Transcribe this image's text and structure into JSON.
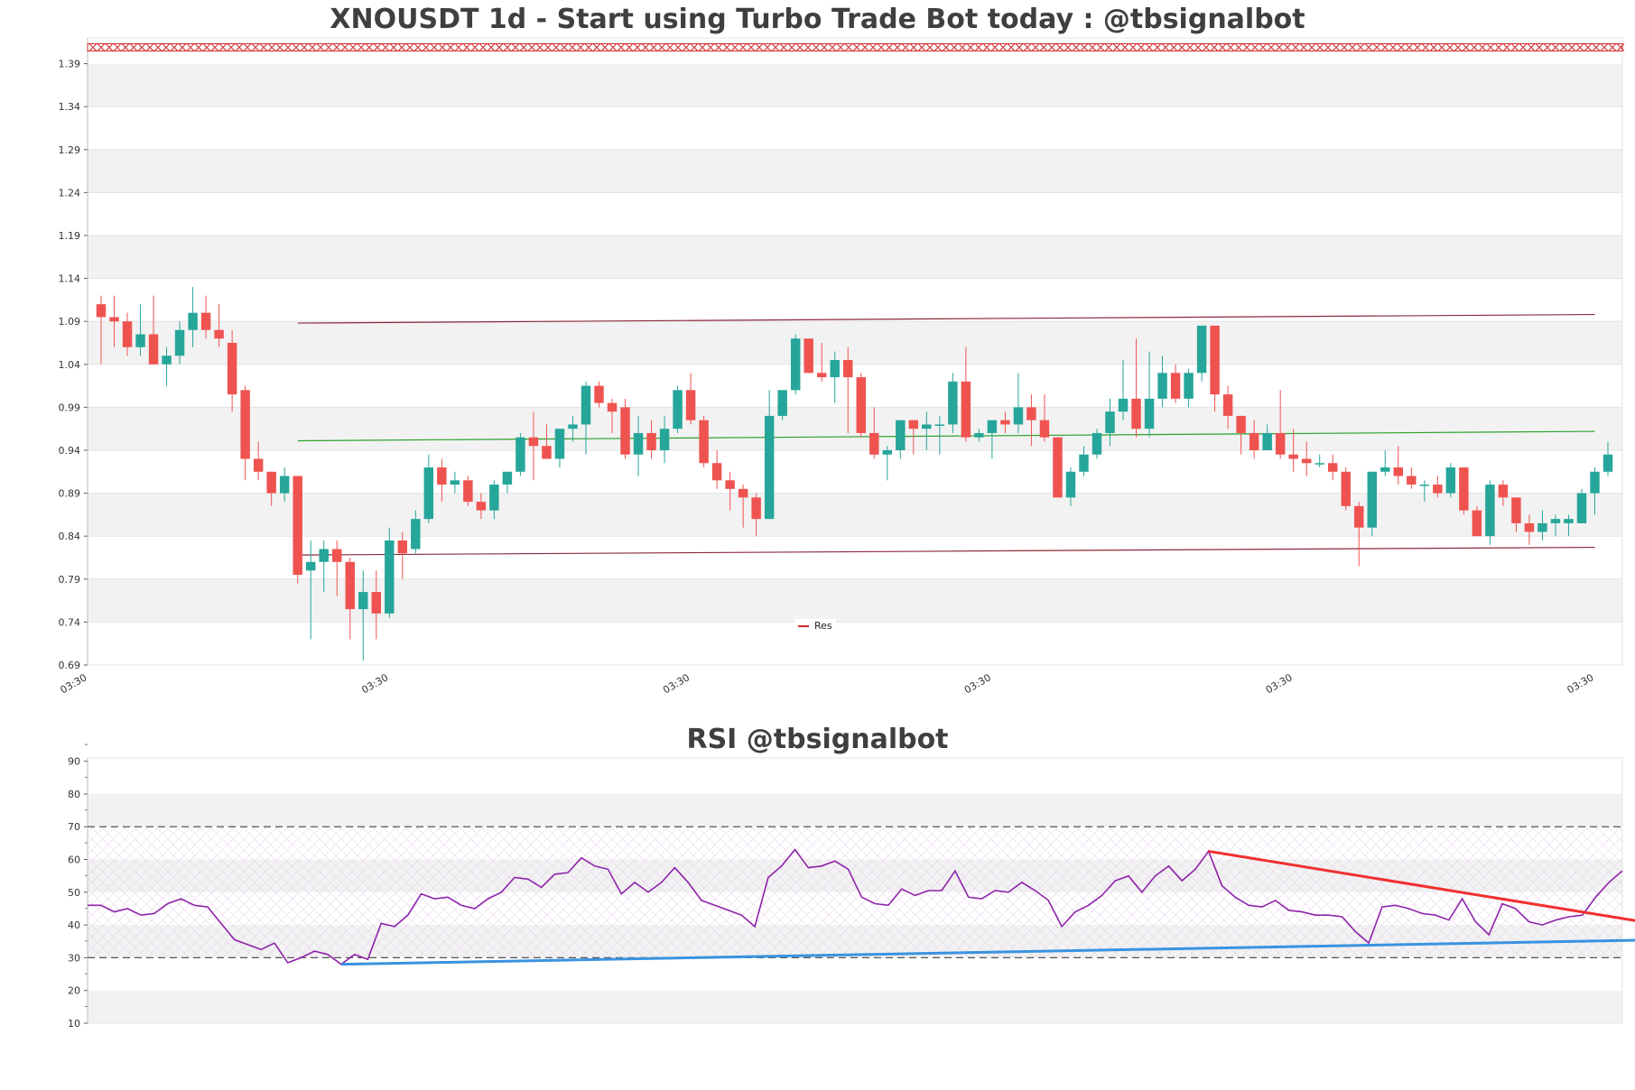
{
  "main_title": "XNOUSDT 1d - Start using Turbo Trade Bot today : @tbsignalbot",
  "rsi_title": "RSI @tbsignalbot",
  "legend_label": "Res",
  "colors": {
    "up": "#26a69a",
    "down": "#ef5350",
    "resistance": "#d62728",
    "channel": "#8b2a3a",
    "mid": "#2ca02c",
    "rsi": "#8e24aa",
    "rsi_down_trend": "#f03030",
    "rsi_up_trend": "#3a93e0",
    "band": "#f2f2f2"
  },
  "chart_data": [
    {
      "type": "candlestick",
      "title": "XNOUSDT 1d - Start using Turbo Trade Bot today : @tbsignalbot",
      "ylim": [
        0.69,
        1.42
      ],
      "y_ticks": [
        "0.69",
        "0.74",
        "0.79",
        "0.84",
        "0.89",
        "0.94",
        "0.99",
        "1.04",
        "1.09",
        "1.14",
        "1.19",
        "1.24",
        "1.29",
        "1.34",
        "1.39"
      ],
      "x_ticks": [
        "03:30",
        "03:30",
        "03:30",
        "03:30",
        "03:30",
        "03:30"
      ],
      "legend": [
        "Res"
      ],
      "resistance_level": 1.409,
      "candles": [
        [
          1.11,
          1.12,
          1.04,
          1.095
        ],
        [
          1.095,
          1.12,
          1.06,
          1.09
        ],
        [
          1.09,
          1.1,
          1.05,
          1.06
        ],
        [
          1.06,
          1.11,
          1.05,
          1.075
        ],
        [
          1.075,
          1.12,
          1.04,
          1.04
        ],
        [
          1.04,
          1.06,
          1.015,
          1.05
        ],
        [
          1.05,
          1.09,
          1.04,
          1.08
        ],
        [
          1.08,
          1.13,
          1.06,
          1.1
        ],
        [
          1.1,
          1.12,
          1.07,
          1.08
        ],
        [
          1.08,
          1.11,
          1.06,
          1.07
        ],
        [
          1.065,
          1.08,
          0.985,
          1.005
        ],
        [
          1.01,
          1.015,
          0.905,
          0.93
        ],
        [
          0.93,
          0.95,
          0.905,
          0.915
        ],
        [
          0.915,
          0.915,
          0.875,
          0.89
        ],
        [
          0.89,
          0.92,
          0.88,
          0.91
        ],
        [
          0.91,
          0.91,
          0.785,
          0.795
        ],
        [
          0.8,
          0.835,
          0.72,
          0.81
        ],
        [
          0.81,
          0.835,
          0.775,
          0.825
        ],
        [
          0.825,
          0.835,
          0.77,
          0.81
        ],
        [
          0.81,
          0.815,
          0.72,
          0.755
        ],
        [
          0.755,
          0.8,
          0.695,
          0.775
        ],
        [
          0.775,
          0.8,
          0.72,
          0.75
        ],
        [
          0.75,
          0.85,
          0.745,
          0.835
        ],
        [
          0.835,
          0.845,
          0.79,
          0.82
        ],
        [
          0.825,
          0.87,
          0.82,
          0.86
        ],
        [
          0.86,
          0.935,
          0.855,
          0.92
        ],
        [
          0.92,
          0.93,
          0.88,
          0.9
        ],
        [
          0.9,
          0.915,
          0.89,
          0.905
        ],
        [
          0.905,
          0.91,
          0.875,
          0.88
        ],
        [
          0.88,
          0.89,
          0.86,
          0.87
        ],
        [
          0.87,
          0.905,
          0.86,
          0.9
        ],
        [
          0.9,
          0.915,
          0.89,
          0.915
        ],
        [
          0.915,
          0.96,
          0.91,
          0.955
        ],
        [
          0.955,
          0.985,
          0.905,
          0.945
        ],
        [
          0.945,
          0.97,
          0.93,
          0.93
        ],
        [
          0.93,
          0.965,
          0.92,
          0.965
        ],
        [
          0.965,
          0.98,
          0.95,
          0.97
        ],
        [
          0.97,
          1.02,
          0.935,
          1.015
        ],
        [
          1.015,
          1.02,
          0.99,
          0.995
        ],
        [
          0.995,
          1.0,
          0.96,
          0.985
        ],
        [
          0.99,
          1.0,
          0.93,
          0.935
        ],
        [
          0.935,
          0.98,
          0.91,
          0.96
        ],
        [
          0.96,
          0.975,
          0.93,
          0.94
        ],
        [
          0.94,
          0.98,
          0.925,
          0.965
        ],
        [
          0.965,
          1.015,
          0.96,
          1.01
        ],
        [
          1.01,
          1.03,
          0.97,
          0.975
        ],
        [
          0.975,
          0.98,
          0.92,
          0.925
        ],
        [
          0.925,
          0.94,
          0.895,
          0.905
        ],
        [
          0.905,
          0.915,
          0.87,
          0.895
        ],
        [
          0.895,
          0.9,
          0.85,
          0.885
        ],
        [
          0.885,
          0.89,
          0.84,
          0.86
        ],
        [
          0.86,
          1.01,
          0.86,
          0.98
        ],
        [
          0.98,
          1.01,
          0.975,
          1.01
        ],
        [
          1.01,
          1.075,
          1.005,
          1.07
        ],
        [
          1.07,
          1.07,
          1.03,
          1.03
        ],
        [
          1.03,
          1.065,
          1.02,
          1.025
        ],
        [
          1.025,
          1.055,
          0.995,
          1.045
        ],
        [
          1.045,
          1.06,
          0.96,
          1.025
        ],
        [
          1.025,
          1.03,
          0.955,
          0.96
        ],
        [
          0.96,
          0.99,
          0.93,
          0.935
        ],
        [
          0.935,
          0.945,
          0.905,
          0.94
        ],
        [
          0.94,
          0.975,
          0.93,
          0.975
        ],
        [
          0.975,
          0.975,
          0.935,
          0.965
        ],
        [
          0.965,
          0.985,
          0.94,
          0.97
        ],
        [
          0.97,
          0.98,
          0.935,
          0.97
        ],
        [
          0.97,
          1.03,
          0.96,
          1.02
        ],
        [
          1.02,
          1.06,
          0.95,
          0.955
        ],
        [
          0.955,
          0.965,
          0.95,
          0.96
        ],
        [
          0.96,
          0.975,
          0.93,
          0.975
        ],
        [
          0.975,
          0.985,
          0.96,
          0.97
        ],
        [
          0.97,
          1.03,
          0.96,
          0.99
        ],
        [
          0.99,
          1.005,
          0.945,
          0.975
        ],
        [
          0.975,
          1.005,
          0.95,
          0.955
        ],
        [
          0.955,
          0.955,
          0.885,
          0.885
        ],
        [
          0.885,
          0.92,
          0.875,
          0.915
        ],
        [
          0.915,
          0.945,
          0.91,
          0.935
        ],
        [
          0.935,
          0.965,
          0.93,
          0.96
        ],
        [
          0.96,
          1.0,
          0.945,
          0.985
        ],
        [
          0.985,
          1.045,
          0.975,
          1.0
        ],
        [
          1.0,
          1.07,
          0.955,
          0.965
        ],
        [
          0.965,
          1.055,
          0.955,
          1.0
        ],
        [
          1.0,
          1.05,
          0.99,
          1.03
        ],
        [
          1.03,
          1.04,
          0.995,
          1.0
        ],
        [
          1.0,
          1.035,
          0.99,
          1.03
        ],
        [
          1.03,
          1.085,
          1.02,
          1.085
        ],
        [
          1.085,
          1.085,
          0.985,
          1.005
        ],
        [
          1.005,
          1.015,
          0.965,
          0.98
        ],
        [
          0.98,
          0.98,
          0.935,
          0.96
        ],
        [
          0.96,
          0.975,
          0.93,
          0.94
        ],
        [
          0.94,
          0.97,
          0.94,
          0.96
        ],
        [
          0.96,
          1.01,
          0.93,
          0.935
        ],
        [
          0.935,
          0.965,
          0.915,
          0.93
        ],
        [
          0.93,
          0.95,
          0.91,
          0.925
        ],
        [
          0.925,
          0.935,
          0.92,
          0.925
        ],
        [
          0.925,
          0.935,
          0.905,
          0.915
        ],
        [
          0.915,
          0.92,
          0.87,
          0.875
        ],
        [
          0.875,
          0.88,
          0.805,
          0.85
        ],
        [
          0.85,
          0.915,
          0.84,
          0.915
        ],
        [
          0.915,
          0.94,
          0.91,
          0.92
        ],
        [
          0.92,
          0.945,
          0.9,
          0.91
        ],
        [
          0.91,
          0.92,
          0.895,
          0.9
        ],
        [
          0.9,
          0.905,
          0.88,
          0.9
        ],
        [
          0.9,
          0.91,
          0.885,
          0.89
        ],
        [
          0.89,
          0.925,
          0.885,
          0.92
        ],
        [
          0.92,
          0.92,
          0.865,
          0.87
        ],
        [
          0.87,
          0.875,
          0.84,
          0.84
        ],
        [
          0.84,
          0.905,
          0.83,
          0.9
        ],
        [
          0.9,
          0.905,
          0.875,
          0.885
        ],
        [
          0.885,
          0.885,
          0.845,
          0.855
        ],
        [
          0.855,
          0.865,
          0.83,
          0.845
        ],
        [
          0.845,
          0.87,
          0.835,
          0.855
        ],
        [
          0.855,
          0.865,
          0.84,
          0.86
        ],
        [
          0.855,
          0.865,
          0.84,
          0.86
        ],
        [
          0.855,
          0.895,
          0.855,
          0.89
        ],
        [
          0.89,
          0.92,
          0.865,
          0.915
        ],
        [
          0.915,
          0.95,
          0.91,
          0.935
        ]
      ],
      "trendlines": [
        {
          "role": "channel-top",
          "from": [
            15,
            1.088
          ],
          "to": [
            114,
            1.098
          ]
        },
        {
          "role": "channel-mid",
          "from": [
            15,
            0.951
          ],
          "to": [
            114,
            0.962
          ]
        },
        {
          "role": "channel-bottom",
          "from": [
            15,
            0.818
          ],
          "to": [
            114,
            0.827
          ]
        }
      ]
    },
    {
      "type": "line",
      "title": "RSI @tbsignalbot",
      "ylim": [
        10,
        91
      ],
      "y_ticks": [
        "10",
        "20",
        "30",
        "40",
        "50",
        "60",
        "70",
        "80",
        "90"
      ],
      "reference_lines": [
        30,
        70
      ],
      "series": [
        {
          "values": [
            46,
            46,
            44,
            45,
            43,
            43.5,
            46.5,
            48,
            46,
            45.5,
            40.5,
            35.5,
            34,
            32.5,
            34.5,
            28.5,
            30,
            32,
            31,
            28,
            31,
            29.5,
            40.5,
            39.5,
            43,
            49.5,
            48,
            48.5,
            46,
            45,
            48,
            50,
            54.5,
            54,
            51.5,
            55.5,
            56,
            60.5,
            58,
            57,
            49.5,
            53,
            50,
            53,
            57.5,
            53,
            47.5,
            46,
            44.5,
            43,
            39.5,
            54.5,
            58,
            63,
            57.5,
            58,
            59.5,
            57,
            48.5,
            46.5,
            46,
            51,
            49,
            50.5,
            50.5,
            56.5,
            48.5,
            48,
            50.5,
            50,
            53,
            50.5,
            47.5,
            39.5,
            44,
            46,
            49,
            53.5,
            55,
            50,
            55,
            58,
            53.5,
            57,
            62.5,
            52,
            48.5,
            46,
            45.5,
            47.5,
            44.5,
            44,
            43,
            43,
            42.5,
            38,
            34.5,
            45.5,
            46,
            45,
            43.5,
            43,
            41.5,
            48,
            41,
            37,
            46.5,
            45,
            41,
            40,
            41.5,
            42.5,
            43,
            48.5,
            53,
            56.5
          ]
        }
      ],
      "trendlines": [
        {
          "role": "rsi-resistance",
          "from": [
            84,
            62.5
          ],
          "to": [
            118,
            40
          ]
        },
        {
          "role": "rsi-support",
          "from": [
            19,
            28
          ],
          "to": [
            118,
            35.5
          ]
        }
      ]
    }
  ]
}
